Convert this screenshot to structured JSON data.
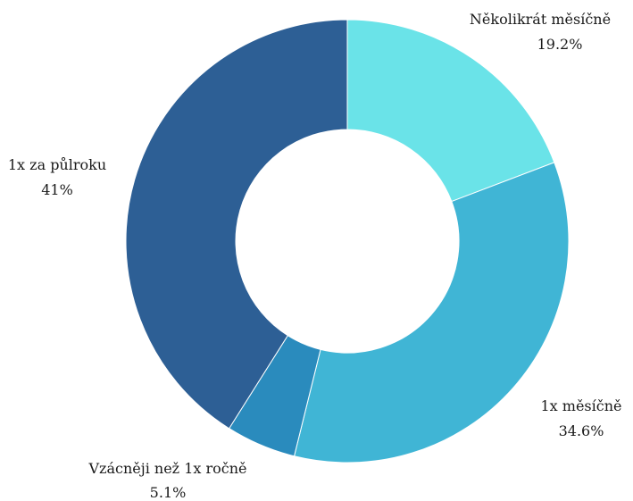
{
  "chart_data": {
    "type": "pie",
    "variant": "donut",
    "slices": [
      {
        "name": "Několikrát měsíčně",
        "value": 19.2,
        "value_label": "19.2%",
        "color": "#6ae3e8"
      },
      {
        "name": "1x měsíčně",
        "value": 34.6,
        "value_label": "34.6%",
        "color": "#40b5d5"
      },
      {
        "name": "Vzácněji než 1x ročně",
        "value": 5.1,
        "value_label": "5.1%",
        "color": "#2a8bbd"
      },
      {
        "name": "1x za půlroku",
        "value": 41,
        "value_label": "41%",
        "color": "#2d5f95"
      }
    ],
    "legend": "none"
  }
}
